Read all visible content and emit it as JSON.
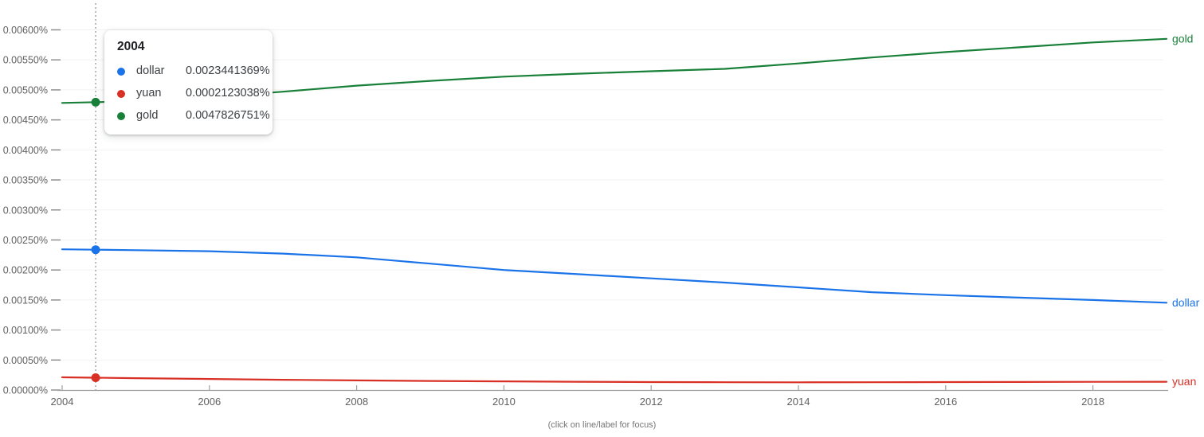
{
  "caption": "(click on line/label for focus)",
  "tooltip": {
    "title": "2004",
    "rows": [
      {
        "label": "dollar",
        "value": "0.0023441369%"
      },
      {
        "label": "yuan",
        "value": "0.0002123038%"
      },
      {
        "label": "gold",
        "value": "0.0047826751%"
      }
    ]
  },
  "chart_data": {
    "type": "line",
    "title": "",
    "xlabel": "",
    "ylabel": "",
    "grid": true,
    "legend_position": "line-end-labels",
    "x": [
      2004,
      2005,
      2006,
      2007,
      2008,
      2009,
      2010,
      2011,
      2012,
      2013,
      2014,
      2015,
      2016,
      2017,
      2018,
      2019
    ],
    "xticks": [
      2004,
      2006,
      2008,
      2010,
      2012,
      2014,
      2016,
      2018
    ],
    "yticks": [
      "0.00000%",
      "0.00050%",
      "0.00100%",
      "0.00150%",
      "0.00200%",
      "0.00250%",
      "0.00300%",
      "0.00350%",
      "0.00400%",
      "0.00450%",
      "0.00500%",
      "0.00550%",
      "0.00600%"
    ],
    "ytick_step_percent": 0.0005,
    "ylim": [
      0,
      0.006
    ],
    "series": [
      {
        "name": "dollar",
        "color": "#1a73e8",
        "values": [
          0.0023441369,
          0.00233,
          0.002313,
          0.002273,
          0.00221,
          0.002105,
          0.002,
          0.00193,
          0.00186,
          0.00179,
          0.00171,
          0.00163,
          0.00158,
          0.00154,
          0.0015,
          0.001455
        ]
      },
      {
        "name": "yuan",
        "color": "#d93025",
        "values": [
          0.0002123038,
          0.000198,
          0.000184,
          0.000171,
          0.000161,
          0.000151,
          0.000144,
          0.000138,
          0.000133,
          0.00013,
          0.000129,
          0.00013,
          0.000132,
          0.000134,
          0.000136,
          0.000138
        ]
      },
      {
        "name": "gold",
        "color": "#188038",
        "values": [
          0.0047826751,
          0.00481,
          0.00488,
          0.00497,
          0.00507,
          0.00515,
          0.00522,
          0.00527,
          0.00531,
          0.00535,
          0.00544,
          0.00554,
          0.00563,
          0.00571,
          0.00579,
          0.00585
        ]
      }
    ],
    "hover": {
      "year": 2004.455,
      "label": "2004"
    },
    "axis_colors": {
      "axis": "#9e9e9e",
      "gridline": "#f2f2f2",
      "crosshair": "#9aa0a6",
      "tick_label": "#616161"
    }
  }
}
